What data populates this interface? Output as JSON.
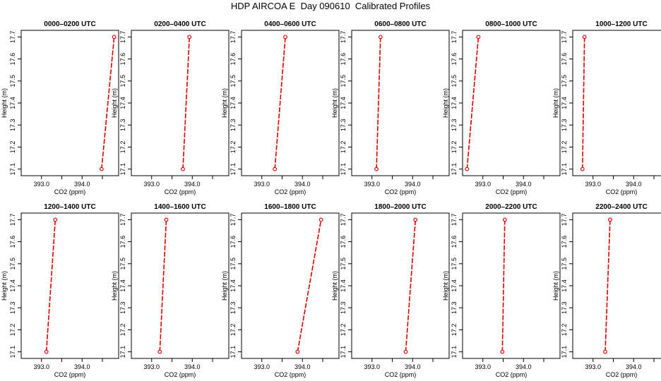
{
  "title": "HDP AIRCOA E  Day 090610  Calibrated Profiles",
  "colors": {
    "series": "#dd0000",
    "axis": "#000000"
  },
  "chart_data": [
    {
      "type": "line",
      "title": "0000–0200 UTC",
      "xlabel": "CO2 (ppm)",
      "ylabel": "Height (m)",
      "xlim": [
        392.5,
        394.9
      ],
      "ylim": [
        17.07,
        17.73
      ],
      "xticks": [
        393.0,
        393.5,
        394.0,
        394.5
      ],
      "xtick_labels": [
        "393.0",
        "",
        "394.0",
        ""
      ],
      "yticks": [
        17.1,
        17.2,
        17.3,
        17.4,
        17.5,
        17.6,
        17.7
      ],
      "ytick_labels": [
        "17.1",
        "17.2",
        "17.3",
        "17.4",
        "17.5",
        "17.6",
        "17.7"
      ],
      "series": [
        {
          "x": [
            394.48,
            394.79
          ],
          "y": [
            17.1,
            17.7
          ]
        }
      ]
    },
    {
      "type": "line",
      "title": "0200–0400 UTC",
      "xlabel": "CO2 (ppm)",
      "ylabel": "Height (m)",
      "xlim": [
        392.5,
        394.9
      ],
      "ylim": [
        17.07,
        17.73
      ],
      "xticks": [
        393.0,
        393.5,
        394.0,
        394.5
      ],
      "xtick_labels": [
        "393.0",
        "",
        "394.0",
        ""
      ],
      "yticks": [
        17.1,
        17.2,
        17.3,
        17.4,
        17.5,
        17.6,
        17.7
      ],
      "ytick_labels": [
        "17.1",
        "17.2",
        "17.3",
        "17.4",
        "17.5",
        "17.6",
        "17.7"
      ],
      "series": [
        {
          "x": [
            393.77,
            393.93
          ],
          "y": [
            17.1,
            17.7
          ]
        }
      ]
    },
    {
      "type": "line",
      "title": "0400–0600 UTC",
      "xlabel": "CO2 (ppm)",
      "ylabel": "Height (m)",
      "xlim": [
        392.5,
        394.9
      ],
      "ylim": [
        17.07,
        17.73
      ],
      "xticks": [
        393.0,
        393.5,
        394.0,
        394.5
      ],
      "xtick_labels": [
        "393.0",
        "",
        "394.0",
        ""
      ],
      "yticks": [
        17.1,
        17.2,
        17.3,
        17.4,
        17.5,
        17.6,
        17.7
      ],
      "ytick_labels": [
        "17.1",
        "17.2",
        "17.3",
        "17.4",
        "17.5",
        "17.6",
        "17.7"
      ],
      "series": [
        {
          "x": [
            393.32,
            393.58
          ],
          "y": [
            17.1,
            17.7
          ]
        }
      ]
    },
    {
      "type": "line",
      "title": "0600–0800 UTC",
      "xlabel": "CO2 (ppm)",
      "ylabel": "Height (m)",
      "xlim": [
        392.5,
        394.9
      ],
      "ylim": [
        17.07,
        17.73
      ],
      "xticks": [
        393.0,
        393.5,
        394.0,
        394.5
      ],
      "xtick_labels": [
        "393.0",
        "",
        "394.0",
        ""
      ],
      "yticks": [
        17.1,
        17.2,
        17.3,
        17.4,
        17.5,
        17.6,
        17.7
      ],
      "ytick_labels": [
        "17.1",
        "17.2",
        "17.3",
        "17.4",
        "17.5",
        "17.6",
        "17.7"
      ],
      "series": [
        {
          "x": [
            393.11,
            393.21
          ],
          "y": [
            17.1,
            17.7
          ]
        }
      ]
    },
    {
      "type": "line",
      "title": "0800–1000 UTC",
      "xlabel": "CO2 (ppm)",
      "ylabel": "Height (m)",
      "xlim": [
        392.5,
        394.9
      ],
      "ylim": [
        17.07,
        17.73
      ],
      "xticks": [
        393.0,
        393.5,
        394.0,
        394.5
      ],
      "xtick_labels": [
        "393.0",
        "",
        "394.0",
        ""
      ],
      "yticks": [
        17.1,
        17.2,
        17.3,
        17.4,
        17.5,
        17.6,
        17.7
      ],
      "ytick_labels": [
        "17.1",
        "17.2",
        "17.3",
        "17.4",
        "17.5",
        "17.6",
        "17.7"
      ],
      "series": [
        {
          "x": [
            392.61,
            392.89
          ],
          "y": [
            17.1,
            17.7
          ]
        }
      ]
    },
    {
      "type": "line",
      "title": "1000–1200 UTC",
      "xlabel": "CO2 (ppm)",
      "ylabel": "Height (m)",
      "xlim": [
        392.5,
        394.9
      ],
      "ylim": [
        17.07,
        17.73
      ],
      "xticks": [
        393.0,
        393.5,
        394.0,
        394.5
      ],
      "xtick_labels": [
        "393.0",
        "",
        "394.0",
        ""
      ],
      "yticks": [
        17.1,
        17.2,
        17.3,
        17.4,
        17.5,
        17.6,
        17.7
      ],
      "ytick_labels": [
        "17.1",
        "17.2",
        "17.3",
        "17.4",
        "17.5",
        "17.6",
        "17.7"
      ],
      "series": [
        {
          "x": [
            392.74,
            392.79
          ],
          "y": [
            17.1,
            17.7
          ]
        }
      ]
    },
    {
      "type": "line",
      "title": "1200–1400 UTC",
      "xlabel": "CO2 (ppm)",
      "ylabel": "Height (m)",
      "xlim": [
        392.5,
        394.9
      ],
      "ylim": [
        17.07,
        17.73
      ],
      "xticks": [
        393.0,
        393.5,
        394.0,
        394.5
      ],
      "xtick_labels": [
        "393.0",
        "",
        "394.0",
        ""
      ],
      "yticks": [
        17.1,
        17.2,
        17.3,
        17.4,
        17.5,
        17.6,
        17.7
      ],
      "ytick_labels": [
        "17.1",
        "17.2",
        "17.3",
        "17.4",
        "17.5",
        "17.6",
        "17.7"
      ],
      "series": [
        {
          "x": [
            393.12,
            393.34
          ],
          "y": [
            17.1,
            17.7
          ]
        }
      ]
    },
    {
      "type": "line",
      "title": "1400–1600 UTC",
      "xlabel": "CO2 (ppm)",
      "ylabel": "Height (m)",
      "xlim": [
        392.5,
        394.9
      ],
      "ylim": [
        17.07,
        17.73
      ],
      "xticks": [
        393.0,
        393.5,
        394.0,
        394.5
      ],
      "xtick_labels": [
        "393.0",
        "",
        "394.0",
        ""
      ],
      "yticks": [
        17.1,
        17.2,
        17.3,
        17.4,
        17.5,
        17.6,
        17.7
      ],
      "ytick_labels": [
        "17.1",
        "17.2",
        "17.3",
        "17.4",
        "17.5",
        "17.6",
        "17.7"
      ],
      "series": [
        {
          "x": [
            393.2,
            393.36
          ],
          "y": [
            17.1,
            17.7
          ]
        }
      ]
    },
    {
      "type": "line",
      "title": "1600–1800 UTC",
      "xlabel": "CO2 (ppm)",
      "ylabel": "Height (m)",
      "xlim": [
        392.5,
        394.9
      ],
      "ylim": [
        17.07,
        17.73
      ],
      "xticks": [
        393.0,
        393.5,
        394.0,
        394.5
      ],
      "xtick_labels": [
        "393.0",
        "",
        "394.0",
        ""
      ],
      "yticks": [
        17.1,
        17.2,
        17.3,
        17.4,
        17.5,
        17.6,
        17.7
      ],
      "ytick_labels": [
        "17.1",
        "17.2",
        "17.3",
        "17.4",
        "17.5",
        "17.6",
        "17.7"
      ],
      "series": [
        {
          "x": [
            393.88,
            394.46
          ],
          "y": [
            17.1,
            17.7
          ]
        }
      ]
    },
    {
      "type": "line",
      "title": "1800–2000 UTC",
      "xlabel": "CO2 (ppm)",
      "ylabel": "Height (m)",
      "xlim": [
        392.5,
        394.9
      ],
      "ylim": [
        17.07,
        17.73
      ],
      "xticks": [
        393.0,
        393.5,
        394.0,
        394.5
      ],
      "xtick_labels": [
        "393.0",
        "",
        "394.0",
        ""
      ],
      "yticks": [
        17.1,
        17.2,
        17.3,
        17.4,
        17.5,
        17.6,
        17.7
      ],
      "ytick_labels": [
        "17.1",
        "17.2",
        "17.3",
        "17.4",
        "17.5",
        "17.6",
        "17.7"
      ],
      "series": [
        {
          "x": [
            393.83,
            394.07
          ],
          "y": [
            17.1,
            17.7
          ]
        }
      ]
    },
    {
      "type": "line",
      "title": "2000–2200 UTC",
      "xlabel": "CO2 (ppm)",
      "ylabel": "Height (m)",
      "xlim": [
        392.5,
        394.9
      ],
      "ylim": [
        17.07,
        17.73
      ],
      "xticks": [
        393.0,
        393.5,
        394.0,
        394.5
      ],
      "xtick_labels": [
        "393.0",
        "",
        "394.0",
        ""
      ],
      "yticks": [
        17.1,
        17.2,
        17.3,
        17.4,
        17.5,
        17.6,
        17.7
      ],
      "ytick_labels": [
        "17.1",
        "17.2",
        "17.3",
        "17.4",
        "17.5",
        "17.6",
        "17.7"
      ],
      "series": [
        {
          "x": [
            393.48,
            393.54
          ],
          "y": [
            17.1,
            17.7
          ]
        }
      ]
    },
    {
      "type": "line",
      "title": "2200–2400 UTC",
      "xlabel": "CO2 (ppm)",
      "ylabel": "Height (m)",
      "xlim": [
        392.5,
        394.9
      ],
      "ylim": [
        17.07,
        17.73
      ],
      "xticks": [
        393.0,
        393.5,
        394.0,
        394.5
      ],
      "xtick_labels": [
        "393.0",
        "",
        "394.0",
        ""
      ],
      "yticks": [
        17.1,
        17.2,
        17.3,
        17.4,
        17.5,
        17.6,
        17.7
      ],
      "ytick_labels": [
        "17.1",
        "17.2",
        "17.3",
        "17.4",
        "17.5",
        "17.6",
        "17.7"
      ],
      "series": [
        {
          "x": [
            393.3,
            393.42
          ],
          "y": [
            17.1,
            17.7
          ]
        }
      ]
    }
  ]
}
